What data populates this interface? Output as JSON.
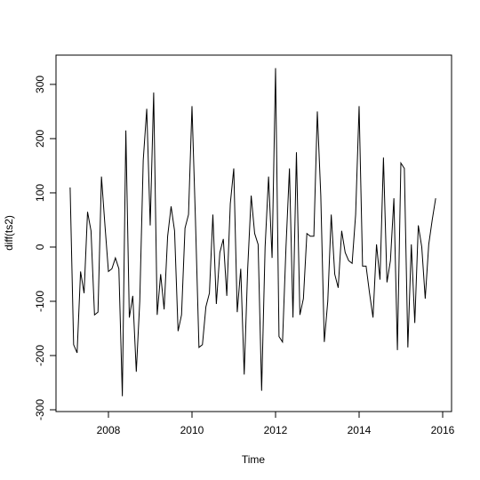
{
  "chart_data": {
    "type": "line",
    "x_label": "Time",
    "y_label": "diff(ts2)",
    "color": "#000000",
    "x": [
      2007.083,
      2007.167,
      2007.25,
      2007.333,
      2007.417,
      2007.5,
      2007.583,
      2007.667,
      2007.75,
      2007.833,
      2007.917,
      2008,
      2008.083,
      2008.167,
      2008.25,
      2008.333,
      2008.417,
      2008.5,
      2008.583,
      2008.667,
      2008.75,
      2008.833,
      2008.917,
      2009,
      2009.083,
      2009.167,
      2009.25,
      2009.333,
      2009.417,
      2009.5,
      2009.583,
      2009.667,
      2009.75,
      2009.833,
      2009.917,
      2010,
      2010.083,
      2010.167,
      2010.25,
      2010.333,
      2010.417,
      2010.5,
      2010.583,
      2010.667,
      2010.75,
      2010.833,
      2010.917,
      2011,
      2011.083,
      2011.167,
      2011.25,
      2011.333,
      2011.417,
      2011.5,
      2011.583,
      2011.667,
      2011.75,
      2011.833,
      2011.917,
      2012,
      2012.083,
      2012.167,
      2012.25,
      2012.333,
      2012.417,
      2012.5,
      2012.583,
      2012.667,
      2012.75,
      2012.833,
      2012.917,
      2013,
      2013.083,
      2013.167,
      2013.25,
      2013.333,
      2013.417,
      2013.5,
      2013.583,
      2013.667,
      2013.75,
      2013.833,
      2013.917,
      2014,
      2014.083,
      2014.167,
      2014.25,
      2014.333,
      2014.417,
      2014.5,
      2014.583,
      2014.667,
      2014.75,
      2014.833,
      2014.917,
      2015,
      2015.083,
      2015.167,
      2015.25,
      2015.333,
      2015.417,
      2015.5,
      2015.583,
      2015.667,
      2015.75,
      2015.833
    ],
    "values": [
      110,
      -180,
      -195,
      -45,
      -85,
      65,
      30,
      -125,
      -120,
      130,
      40,
      -45,
      -40,
      -20,
      -40,
      -275,
      215,
      -130,
      -90,
      -230,
      -100,
      160,
      255,
      40,
      285,
      -125,
      -50,
      -115,
      20,
      75,
      30,
      -155,
      -125,
      35,
      60,
      260,
      50,
      -185,
      -180,
      -110,
      -85,
      60,
      -105,
      -10,
      15,
      -90,
      80,
      145,
      -120,
      -40,
      -235,
      -40,
      95,
      25,
      5,
      -265,
      0,
      130,
      -20,
      330,
      -165,
      -175,
      0,
      145,
      -130,
      175,
      -125,
      -95,
      25,
      20,
      20,
      250,
      95,
      -175,
      -100,
      60,
      -50,
      -75,
      30,
      -10,
      -25,
      -30,
      60,
      260,
      -35,
      -35,
      -85,
      -130,
      5,
      -60,
      165,
      -65,
      -25,
      90,
      -190,
      155,
      145,
      -185,
      5,
      -140,
      40,
      0,
      -95,
      5,
      50,
      90
    ],
    "xlim": [
      2006.745,
      2016.213
    ],
    "ylim": [
      -303.3,
      354
    ],
    "xticks": [
      2008,
      2010,
      2012,
      2014,
      2016
    ],
    "yticks": [
      -300,
      -200,
      -100,
      0,
      100,
      200,
      300
    ],
    "grid": false
  }
}
